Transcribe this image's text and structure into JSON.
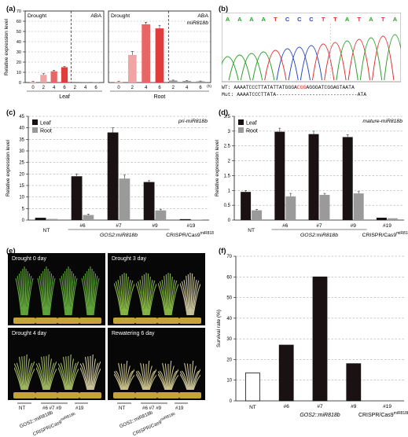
{
  "panels": {
    "a": {
      "label": "(a)"
    },
    "b": {
      "label": "(b)"
    },
    "c": {
      "label": "(c)"
    },
    "d": {
      "label": "(d)"
    },
    "e": {
      "label": "(e)"
    },
    "f": {
      "label": "(f)"
    }
  },
  "chart_data": [
    {
      "panel": "a",
      "type": "bar",
      "ylabel": "Relative expression level",
      "ylim": [
        0,
        70
      ],
      "yticks": [
        0,
        10,
        20,
        30,
        40,
        50,
        60,
        70
      ],
      "subplots": [
        {
          "xlabel": "Leaf",
          "groups": [
            {
              "label": "Drought",
              "categories": [
                "0",
                "2",
                "4",
                "6"
              ],
              "values": [
                1,
                7.5,
                11,
                15
              ],
              "errors": [
                0.3,
                1.2,
                1.0,
                0.8
              ],
              "colors": [
                "#f6cccc",
                "#f1a4a4",
                "#e86666",
                "#e03c3c"
              ]
            },
            {
              "label": "ABA",
              "categories": [
                "2",
                "4",
                "6"
              ],
              "values": [
                0.8,
                0.6,
                0.5
              ],
              "errors": [
                0.2,
                0.2,
                0.2
              ],
              "colors": [
                "#9a9a9a",
                "#9a9a9a",
                "#9a9a9a"
              ]
            }
          ]
        },
        {
          "xlabel": "Root",
          "annotation": "miR818b",
          "xunit": "(h)",
          "groups": [
            {
              "label": "Drought",
              "categories": [
                "0",
                "2",
                "4",
                "6"
              ],
              "values": [
                1,
                27,
                57,
                53
              ],
              "errors": [
                0.3,
                3.5,
                2.0,
                3.0
              ],
              "colors": [
                "#f6cccc",
                "#f1a4a4",
                "#e86666",
                "#e03c3c"
              ]
            },
            {
              "label": "ABA",
              "categories": [
                "2",
                "4",
                "6"
              ],
              "values": [
                2.0,
                1.6,
                1.2
              ],
              "errors": [
                0.4,
                0.3,
                0.3
              ],
              "colors": [
                "#9a9a9a",
                "#9a9a9a",
                "#9a9a9a"
              ]
            }
          ]
        }
      ]
    },
    {
      "panel": "c",
      "type": "bar",
      "ylabel": "Relative expression level",
      "annotation": "pri-miR818b",
      "ylim": [
        0,
        45
      ],
      "yticks": [
        0,
        5,
        10,
        15,
        20,
        25,
        30,
        35,
        40,
        45
      ],
      "categories": [
        "NT",
        "#6",
        "#7",
        "#9",
        "#19"
      ],
      "groups": [
        {
          "label": "GOS2:miR818b",
          "members": [
            "#6",
            "#7",
            "#9"
          ]
        },
        {
          "label": "CRISPR/Cas9",
          "sup": "miR818b",
          "members": [
            "#19"
          ]
        }
      ],
      "series": [
        {
          "name": "Leaf",
          "color": "#1a1212",
          "values": [
            1.0,
            19.0,
            38.0,
            16.5,
            0.4
          ],
          "errors": [
            0.2,
            1.0,
            2.0,
            0.6,
            0.1
          ]
        },
        {
          "name": "Root",
          "color": "#9a9a9a",
          "values": [
            0.5,
            2.2,
            18.0,
            4.2,
            0.2
          ],
          "errors": [
            0.1,
            0.4,
            1.5,
            0.5,
            0.05
          ]
        }
      ]
    },
    {
      "panel": "d",
      "type": "bar",
      "ylabel": "Relative expression level",
      "annotation": "mature-miR818b",
      "ylim": [
        0,
        3.5
      ],
      "yticks": [
        0,
        0.5,
        1,
        1.5,
        2,
        2.5,
        3,
        3.5
      ],
      "categories": [
        "NT",
        "#6",
        "#7",
        "#9",
        "#19"
      ],
      "groups": [
        {
          "label": "GOS2:miR818b",
          "members": [
            "#6",
            "#7",
            "#9"
          ]
        },
        {
          "label": "CRISPR/Cas9",
          "sup": "miR818b",
          "members": [
            "#19"
          ]
        }
      ],
      "series": [
        {
          "name": "Leaf",
          "color": "#1a1212",
          "values": [
            0.95,
            2.98,
            2.9,
            2.8,
            0.08
          ],
          "errors": [
            0.04,
            0.12,
            0.1,
            0.08,
            0.02
          ]
        },
        {
          "name": "Root",
          "color": "#9a9a9a",
          "values": [
            0.33,
            0.8,
            0.85,
            0.9,
            0.06
          ],
          "errors": [
            0.03,
            0.1,
            0.05,
            0.06,
            0.02
          ]
        }
      ]
    },
    {
      "panel": "f",
      "type": "bar",
      "ylabel": "Survival rate (%)",
      "ylim": [
        0,
        70
      ],
      "yticks": [
        0,
        10,
        20,
        30,
        40,
        50,
        60,
        70
      ],
      "categories": [
        "NT",
        "#6",
        "#7",
        "#9",
        "#19"
      ],
      "groups": [
        {
          "label": "GOS2::miR818b",
          "members": [
            "#6",
            "#7",
            "#9"
          ]
        },
        {
          "label": "CRISPR/Cas9",
          "sup": "miR818b",
          "members": [
            "#19"
          ]
        }
      ],
      "values": [
        13.5,
        27,
        60,
        18,
        0
      ],
      "colors": [
        "#ffffff",
        "#1a1212",
        "#1a1212",
        "#1a1212",
        "#1a1212"
      ]
    }
  ],
  "sequencing": {
    "top_bases": [
      "A",
      "A",
      "A",
      "A",
      "T",
      "C",
      "C",
      "C",
      "T",
      "T",
      "A",
      "T",
      "A",
      "T",
      "A"
    ],
    "top_base_colors": [
      "#2aa02a",
      "#2aa02a",
      "#2aa02a",
      "#2aa02a",
      "#e23030",
      "#2a48c8",
      "#2a48c8",
      "#2a48c8",
      "#e23030",
      "#e23030",
      "#2aa02a",
      "#e23030",
      "#2aa02a",
      "#e23030",
      "#2aa02a"
    ],
    "wt_label": "WT:",
    "wt_seq_a": "AAAATCCCTTATATTATGGGA",
    "wt_seq_red": "CGG",
    "wt_seq_b": "AGGGATCGGAGTAATA",
    "mut_label": "Mut:",
    "mut_seq_a": "AAAATCCCTTATA",
    "mut_seq_b": "---------------------------ATA"
  },
  "photos": {
    "tiles": [
      {
        "caption": "Drought 0 day"
      },
      {
        "caption": "Drought 3 day"
      },
      {
        "caption": "Drought 4 day"
      },
      {
        "caption": "Rewatering 6 day"
      }
    ],
    "nt": "NT",
    "oe_lines": "#6 #7 #9",
    "ko_line": "#19",
    "oe_name": "GOS2::miR818b",
    "ko_name": "CRISPR/Cas9",
    "ko_sup": "miR818b"
  }
}
